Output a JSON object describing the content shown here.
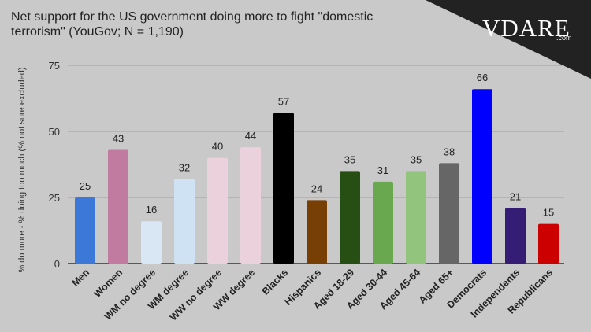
{
  "header": {
    "title_line1": "Net support for the US government doing more to fight \"domestic",
    "title_line2": "terrorism\" (YouGov; N = 1,190)"
  },
  "logo": {
    "text": "VDARE",
    "sub": ".com"
  },
  "chart_data": {
    "type": "bar",
    "title": "Net support for the US government doing more to fight \"domestic terrorism\" (YouGov; N = 1,190)",
    "ylabel": "% do more - % doing too much (% not sure excluded)",
    "xlabel": "",
    "ylim": [
      0,
      75
    ],
    "yticks": [
      0,
      25,
      50,
      75
    ],
    "grid": true,
    "categories": [
      "Men",
      "Women",
      "WM no degree",
      "WM degree",
      "WW no degree",
      "WW degree",
      "Blacks",
      "Hispanics",
      "Aged 18-29",
      "Aged 30-44",
      "Aged 45-64",
      "Aged 65+",
      "Democrats",
      "Independents",
      "Republicans"
    ],
    "values": [
      25,
      43,
      16,
      32,
      40,
      44,
      57,
      24,
      35,
      31,
      35,
      38,
      66,
      21,
      15
    ],
    "colors": [
      "#3c78d8",
      "#c27ba0",
      "#d9e6f4",
      "#cfe2f3",
      "#ead1dc",
      "#ead1dc",
      "#000000",
      "#783f04",
      "#274e13",
      "#6aa84f",
      "#93c47d",
      "#666666",
      "#0000ff",
      "#351c75",
      "#cc0000"
    ]
  }
}
